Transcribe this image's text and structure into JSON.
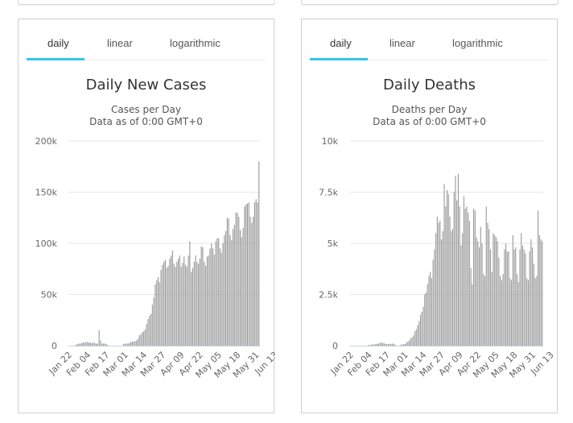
{
  "top_cards": [
    {
      "name": "top-card-left"
    },
    {
      "name": "top-card-right"
    }
  ],
  "panels": [
    {
      "tabs": [
        {
          "label": "daily",
          "active": true
        },
        {
          "label": "linear",
          "active": false
        },
        {
          "label": "logarithmic",
          "active": false
        }
      ],
      "title": "Daily New Cases",
      "subtitle_line1": "Cases per Day",
      "subtitle_line2": "Data as of 0:00 GMT+0"
    },
    {
      "tabs": [
        {
          "label": "daily",
          "active": true
        },
        {
          "label": "linear",
          "active": false
        },
        {
          "label": "logarithmic",
          "active": false
        }
      ],
      "title": "Daily Deaths",
      "subtitle_line1": "Deaths per Day",
      "subtitle_line2": "Data as of 0:00 GMT+0"
    }
  ],
  "colors": {
    "accent": "#33c6ea",
    "bar": "#979797",
    "grid": "#e6e6e6",
    "baseline": "#c6d2e3"
  },
  "chart_data": [
    {
      "type": "bar",
      "title": "Daily New Cases",
      "subtitle": "Cases per Day",
      "xlabel": "",
      "ylabel": "",
      "ylim": [
        0,
        200000
      ],
      "yticks": [
        0,
        50000,
        100000,
        150000,
        200000
      ],
      "ytick_labels": [
        "0",
        "50k",
        "100k",
        "150k",
        "200k"
      ],
      "xtick_labels": [
        "Jan 22",
        "Feb 04",
        "Feb 17",
        "Mar 01",
        "Mar 14",
        "Mar 27",
        "Apr 09",
        "Apr 22",
        "May 05",
        "May 18",
        "May 31",
        "Jun 13"
      ],
      "start_date": "Jan 22",
      "grid": true,
      "values": [
        0,
        0,
        0,
        0,
        0,
        1000,
        1500,
        2000,
        2000,
        2500,
        3000,
        3000,
        3500,
        3500,
        3000,
        3000,
        2500,
        3000,
        2500,
        2000,
        2000,
        15000,
        5000,
        2000,
        2000,
        2000,
        1500,
        500,
        0,
        0,
        0,
        0,
        0,
        0,
        0,
        0,
        0,
        0,
        1500,
        2000,
        2000,
        2000,
        2500,
        3500,
        4000,
        4000,
        4500,
        5000,
        7000,
        10000,
        11000,
        13000,
        14000,
        16000,
        21000,
        26000,
        29000,
        31000,
        40000,
        47000,
        60000,
        64000,
        67000,
        62000,
        74000,
        79000,
        82000,
        84000,
        76000,
        78000,
        85000,
        88000,
        93000,
        80000,
        77000,
        82000,
        85000,
        88000,
        77000,
        81000,
        87000,
        79000,
        77000,
        88000,
        102000,
        72000,
        76000,
        82000,
        88000,
        82000,
        80000,
        85000,
        97000,
        96000,
        82000,
        78000,
        87000,
        88000,
        95000,
        100000,
        95000,
        89000,
        102000,
        105000,
        105000,
        95000,
        91000,
        100000,
        108000,
        112000,
        125000,
        124000,
        108000,
        103000,
        114000,
        118000,
        130000,
        130000,
        126000,
        113000,
        106000,
        115000,
        136000,
        138000,
        139000,
        140000,
        126000,
        120000,
        126000,
        140000,
        143000,
        140000,
        180000
      ]
    },
    {
      "type": "bar",
      "title": "Daily Deaths",
      "subtitle": "Deaths per Day",
      "xlabel": "",
      "ylabel": "",
      "ylim": [
        0,
        10000
      ],
      "yticks": [
        0,
        2500,
        5000,
        7500,
        10000
      ],
      "ytick_labels": [
        "0",
        "2.5k",
        "5k",
        "7.5k",
        "10k"
      ],
      "xtick_labels": [
        "Jan 22",
        "Feb 04",
        "Feb 17",
        "Mar 01",
        "Mar 14",
        "Mar 27",
        "Apr 09",
        "Apr 22",
        "May 05",
        "May 18",
        "May 31",
        "Jun 13"
      ],
      "start_date": "Jan 22",
      "grid": true,
      "values": [
        0,
        0,
        0,
        0,
        0,
        0,
        0,
        0,
        0,
        0,
        0,
        0,
        0,
        40,
        40,
        50,
        60,
        60,
        80,
        90,
        100,
        140,
        150,
        140,
        110,
        90,
        80,
        80,
        90,
        80,
        110,
        80,
        50,
        0,
        0,
        0,
        50,
        60,
        70,
        80,
        150,
        200,
        250,
        350,
        400,
        500,
        700,
        800,
        1000,
        1200,
        1500,
        1650,
        1900,
        2500,
        2600,
        3000,
        3400,
        3600,
        3300,
        4200,
        4700,
        5500,
        6300,
        6000,
        6100,
        5200,
        5600,
        7900,
        6800,
        7600,
        7400,
        6300,
        5600,
        5700,
        7500,
        8300,
        7100,
        8400,
        6800,
        4900,
        5500,
        7300,
        6700,
        6800,
        6500,
        6100,
        3800,
        3000,
        6700,
        6600,
        5300,
        5100,
        4800,
        5800,
        5000,
        3500,
        3400,
        6800,
        6000,
        5700,
        4700,
        3600,
        5500,
        5400,
        5300,
        5100,
        4300,
        3400,
        3200,
        3500,
        4700,
        5000,
        4600,
        4600,
        3300,
        3200,
        5400,
        4700,
        4800,
        3500,
        3100,
        4700,
        5500,
        4900,
        4700,
        4500,
        3300,
        3200,
        4600,
        5200,
        4800,
        4000,
        3300,
        3400,
        6600,
        5400,
        5200,
        5100
      ]
    }
  ]
}
